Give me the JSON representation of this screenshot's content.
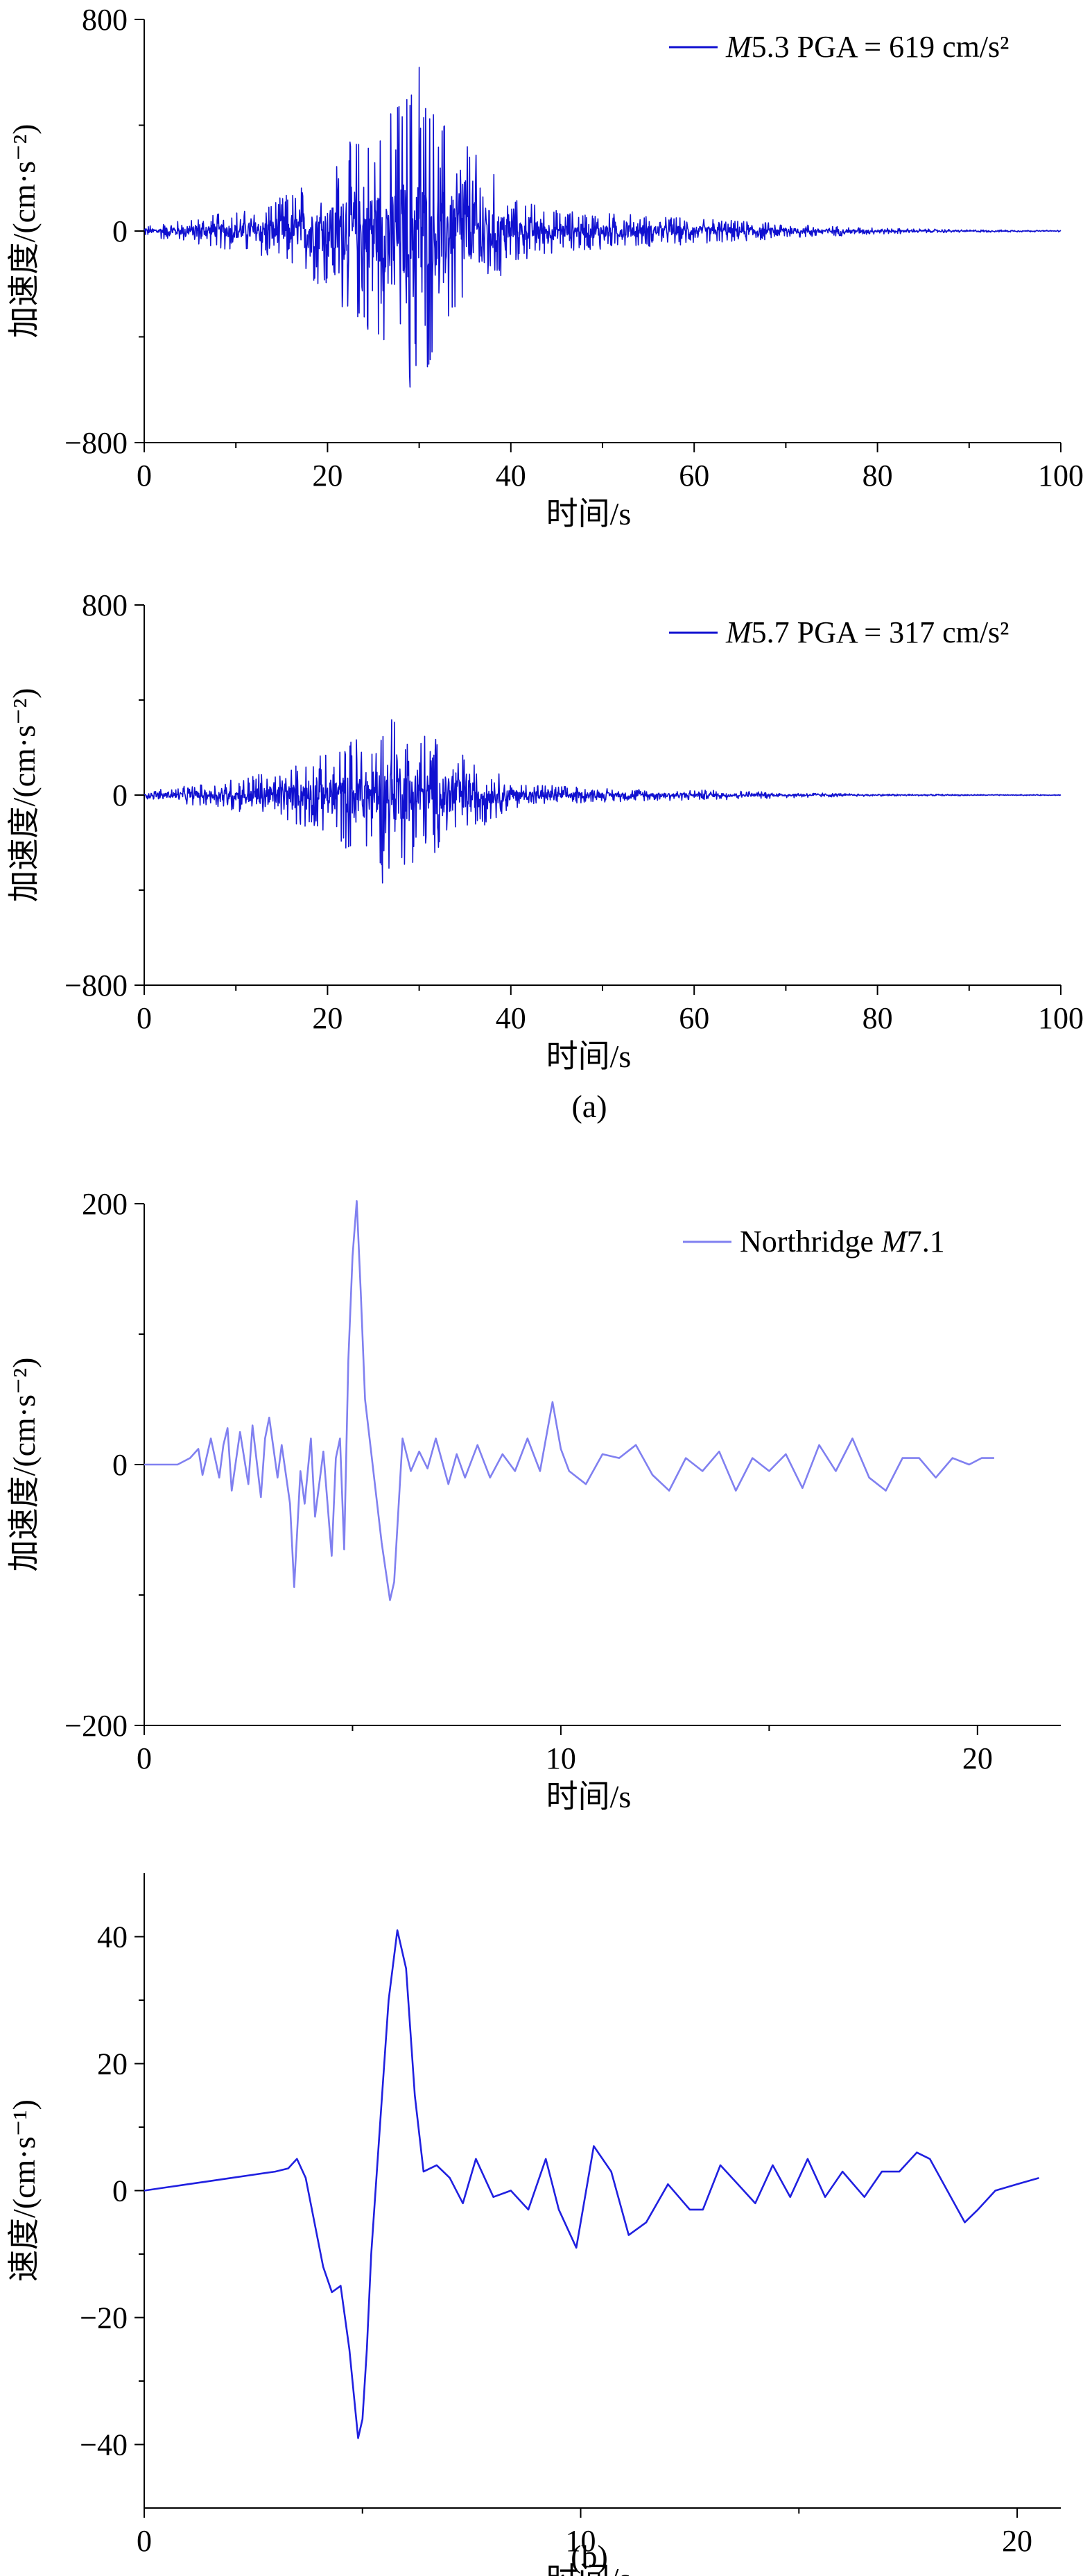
{
  "figure": {
    "caption_a": "(a)",
    "caption_b": "(b)"
  },
  "chart_data": [
    {
      "type": "line",
      "title": "",
      "xlabel": "时间/s",
      "ylabel": "加速度/(cm·s⁻²)",
      "xlim": [
        0,
        100
      ],
      "ylim": [
        -800,
        800
      ],
      "xticks": [
        "0",
        "20",
        "40",
        "60",
        "80",
        "100"
      ],
      "yticks": [
        "800",
        "0",
        "−800"
      ],
      "grid": false,
      "legend_position": "top-right",
      "series": [
        {
          "name": "M5.3 PGA = 619 cm/s²",
          "name_italic": "M",
          "name_rest": "5.3 PGA = 619 cm/s²",
          "color": "#1010d0",
          "peak_positive": 619,
          "peak_negative": -590,
          "envelope": {
            "x": [
              0,
              5,
              10,
              15,
              20,
              22,
              25,
              28,
              30,
              33,
              35,
              38,
              40,
              45,
              50,
              55,
              60,
              65,
              70,
              75,
              80,
              85,
              90,
              95,
              100
            ],
            "y": [
              20,
              45,
              80,
              130,
              230,
              330,
              390,
              520,
              619,
              400,
              330,
              230,
              130,
              80,
              70,
              60,
              50,
              40,
              30,
              20,
              12,
              8,
              5,
              4,
              3
            ]
          }
        }
      ]
    },
    {
      "type": "line",
      "title": "",
      "xlabel": "时间/s",
      "ylabel": "加速度/(cm·s⁻²)",
      "xlim": [
        0,
        100
      ],
      "ylim": [
        -800,
        800
      ],
      "xticks": [
        "0",
        "20",
        "40",
        "60",
        "80",
        "100"
      ],
      "yticks": [
        "800",
        "0",
        "−800"
      ],
      "grid": false,
      "legend_position": "top-right",
      "series": [
        {
          "name": "M5.7 PGA = 317 cm/s²",
          "name_italic": "M",
          "name_rest": "5.7 PGA = 317 cm/s²",
          "color": "#1010d0",
          "peak_positive": 317,
          "peak_negative": -370,
          "envelope": {
            "x": [
              0,
              5,
              10,
              15,
              20,
              23,
              25,
              27,
              30,
              33,
              35,
              38,
              40,
              45,
              50,
              55,
              60,
              65,
              70,
              75,
              80,
              85,
              90,
              95,
              100
            ],
            "y": [
              15,
              40,
              70,
              110,
              180,
              250,
              300,
              317,
              280,
              220,
              170,
              110,
              60,
              40,
              30,
              25,
              22,
              18,
              12,
              8,
              5,
              4,
              3,
              2,
              2
            ]
          }
        }
      ]
    },
    {
      "type": "line",
      "title": "",
      "xlabel": "时间/s",
      "ylabel": "加速度/(cm·s⁻²)",
      "xlim": [
        0,
        22
      ],
      "ylim": [
        -200,
        200
      ],
      "xticks": [
        "0",
        "10",
        "20"
      ],
      "yticks": [
        "200",
        "0",
        "−200"
      ],
      "grid": false,
      "legend_position": "top-right",
      "series": [
        {
          "name": "Northridge M7.1",
          "name_plain": "Northridge ",
          "name_italic": "M",
          "name_rest": "7.1",
          "color": "#8080f0",
          "x": [
            0,
            0.8,
            1.1,
            1.3,
            1.4,
            1.6,
            1.8,
            1.9,
            2.0,
            2.1,
            2.3,
            2.5,
            2.6,
            2.8,
            2.9,
            3.0,
            3.2,
            3.3,
            3.5,
            3.6,
            3.75,
            3.85,
            4.0,
            4.1,
            4.3,
            4.5,
            4.6,
            4.7,
            4.8,
            4.9,
            5.0,
            5.1,
            5.2,
            5.3,
            5.5,
            5.7,
            5.9,
            6.0,
            6.2,
            6.4,
            6.6,
            6.8,
            7.0,
            7.3,
            7.5,
            7.7,
            8.0,
            8.3,
            8.6,
            8.9,
            9.2,
            9.5,
            9.8,
            10.0,
            10.2,
            10.6,
            11.0,
            11.4,
            11.8,
            12.2,
            12.6,
            13.0,
            13.4,
            13.8,
            14.2,
            14.6,
            15.0,
            15.4,
            15.8,
            16.2,
            16.6,
            17.0,
            17.4,
            17.8,
            18.2,
            18.6,
            19.0,
            19.4,
            19.8,
            20.1,
            20.4
          ],
          "y": [
            0,
            0,
            5,
            12,
            -8,
            20,
            -10,
            15,
            28,
            -20,
            25,
            -15,
            30,
            -25,
            20,
            36,
            -10,
            15,
            -30,
            -94,
            -5,
            -30,
            20,
            -40,
            10,
            -70,
            5,
            20,
            -65,
            80,
            160,
            202,
            130,
            50,
            -5,
            -60,
            -104,
            -90,
            20,
            -5,
            10,
            -3,
            20,
            -15,
            8,
            -10,
            15,
            -10,
            8,
            -5,
            20,
            -5,
            48,
            12,
            -5,
            -15,
            8,
            5,
            15,
            -8,
            -20,
            5,
            -5,
            10,
            -20,
            5,
            -5,
            8,
            -18,
            15,
            -5,
            20,
            -10,
            -20,
            5,
            5,
            -10,
            5,
            0,
            5,
            5
          ]
        }
      ]
    },
    {
      "type": "line",
      "title": "",
      "xlabel": "时间/s",
      "ylabel": "速度/(cm·s⁻¹)",
      "xlim": [
        0,
        21
      ],
      "ylim": [
        -50,
        50
      ],
      "xticks": [
        "0",
        "10",
        "20"
      ],
      "yticks": [
        "40",
        "20",
        "0",
        "−20",
        "−40"
      ],
      "grid": false,
      "legend_position": "",
      "series": [
        {
          "name": "",
          "color": "#2020e0",
          "x": [
            0,
            0.5,
            1.0,
            1.5,
            2.0,
            2.5,
            3.0,
            3.3,
            3.5,
            3.7,
            3.9,
            4.1,
            4.3,
            4.5,
            4.7,
            4.9,
            5.0,
            5.1,
            5.2,
            5.4,
            5.6,
            5.8,
            6.0,
            6.2,
            6.4,
            6.7,
            7.0,
            7.3,
            7.6,
            8.0,
            8.4,
            8.8,
            9.2,
            9.5,
            9.9,
            10.3,
            10.7,
            11.1,
            11.5,
            12.0,
            12.5,
            12.8,
            13.2,
            13.6,
            14.0,
            14.4,
            14.8,
            15.2,
            15.6,
            16.0,
            16.5,
            16.9,
            17.3,
            17.7,
            18.0,
            18.4,
            18.8,
            19.1,
            19.5,
            20.0,
            20.5
          ],
          "y": [
            0,
            0.5,
            1,
            1.5,
            2,
            2.5,
            3,
            3.5,
            5,
            2,
            -5,
            -12,
            -16,
            -15,
            -25,
            -39,
            -36,
            -25,
            -10,
            10,
            30,
            41,
            35,
            15,
            3,
            4,
            2,
            -2,
            5,
            -1,
            0,
            -3,
            5,
            -3,
            -9,
            7,
            3,
            -7,
            -5,
            1,
            -3,
            -3,
            4,
            1,
            -2,
            4,
            -1,
            5,
            -1,
            3,
            -1,
            3,
            3,
            6,
            5,
            0,
            -5,
            -3,
            0,
            1,
            2
          ]
        }
      ]
    }
  ]
}
